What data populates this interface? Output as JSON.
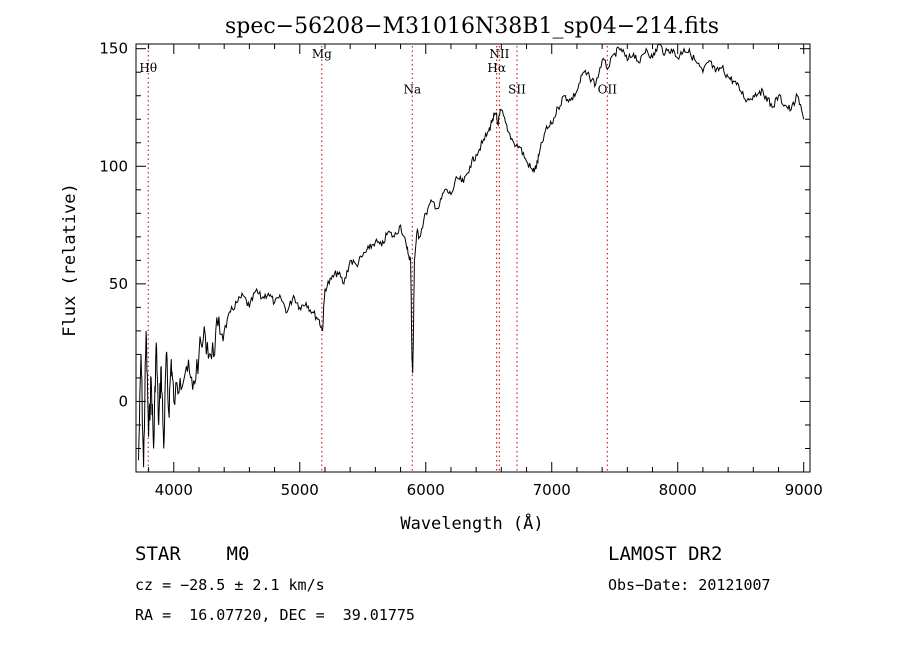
{
  "chart_data": {
    "type": "line",
    "title": "spec−56208−M31016N38B1_sp04−214.fits",
    "xlabel": "Wavelength (Å)",
    "ylabel": "Flux (relative)",
    "xlim": [
      3700,
      9050
    ],
    "ylim": [
      -30,
      152
    ],
    "xticks": [
      {
        "value": 4000,
        "label": "4000"
      },
      {
        "value": 5000,
        "label": "5000"
      },
      {
        "value": 6000,
        "label": "6000"
      },
      {
        "value": 7000,
        "label": "7000"
      },
      {
        "value": 8000,
        "label": "8000"
      },
      {
        "value": 9000,
        "label": "9000"
      }
    ],
    "yticks": [
      {
        "value": 0,
        "label": "0"
      },
      {
        "value": 50,
        "label": "50"
      },
      {
        "value": 100,
        "label": "100"
      },
      {
        "value": 150,
        "label": "150"
      }
    ],
    "grid": false,
    "series": [
      {
        "x": [
          3720,
          3740,
          3760,
          3780,
          3800,
          3820,
          3840,
          3860,
          3880,
          3900,
          3920,
          3940,
          3960,
          3980,
          4000,
          4050,
          4100,
          4150,
          4200,
          4250,
          4300,
          4350,
          4400,
          4450,
          4500,
          4550,
          4600,
          4650,
          4700,
          4750,
          4800,
          4850,
          4900,
          4950,
          5000,
          5050,
          5100,
          5150,
          5180,
          5200,
          5250,
          5300,
          5350,
          5400,
          5450,
          5500,
          5550,
          5600,
          5650,
          5700,
          5750,
          5800,
          5850,
          5880,
          5890,
          5896,
          5900,
          5910,
          5930,
          5950,
          6000,
          6050,
          6100,
          6150,
          6200,
          6250,
          6300,
          6350,
          6400,
          6450,
          6500,
          6530,
          6560,
          6570,
          6600,
          6650,
          6700,
          6750,
          6800,
          6850,
          6880,
          6900,
          6950,
          7000,
          7050,
          7100,
          7150,
          7200,
          7250,
          7300,
          7350,
          7400,
          7450,
          7500,
          7550,
          7600,
          7650,
          7700,
          7750,
          7800,
          7850,
          7900,
          7950,
          8000,
          8050,
          8100,
          8150,
          8200,
          8250,
          8300,
          8350,
          8400,
          8450,
          8500,
          8550,
          8600,
          8650,
          8700,
          8750,
          8800,
          8850,
          8900,
          8950,
          9000
        ],
        "y": [
          -25,
          20,
          -28,
          30,
          -15,
          10,
          -20,
          25,
          -10,
          15,
          -20,
          20,
          -5,
          18,
          0,
          10,
          15,
          5,
          20,
          28,
          18,
          32,
          30,
          38,
          42,
          45,
          40,
          47,
          44,
          46,
          42,
          44,
          38,
          45,
          40,
          42,
          38,
          35,
          30,
          48,
          52,
          55,
          50,
          60,
          58,
          62,
          65,
          68,
          66,
          72,
          70,
          75,
          65,
          60,
          20,
          12,
          22,
          60,
          72,
          70,
          80,
          85,
          82,
          90,
          88,
          95,
          93,
          100,
          105,
          110,
          115,
          120,
          122,
          118,
          124,
          115,
          110,
          108,
          102,
          98,
          100,
          105,
          115,
          118,
          125,
          130,
          128,
          132,
          140,
          138,
          135,
          145,
          142,
          148,
          150,
          145,
          148,
          144,
          150,
          146,
          152,
          148,
          150,
          146,
          150,
          148,
          144,
          140,
          145,
          140,
          142,
          138,
          136,
          132,
          128,
          130,
          132,
          130,
          125,
          130,
          126,
          124,
          130,
          120
        ]
      }
    ],
    "lines": [
      {
        "label": "Hθ",
        "x": 3797,
        "label_y": 140
      },
      {
        "label": "Mg",
        "x": 5175,
        "label_y": 146
      },
      {
        "label": "Na",
        "x": 5893,
        "label_y": 131
      },
      {
        "label": "NII",
        "x": 6584,
        "label_y": 146
      },
      {
        "label": "Hα",
        "x": 6563,
        "label_y": 140
      },
      {
        "label": "SII",
        "x": 6724,
        "label_y": 131
      },
      {
        "label": "OII",
        "x": 7441,
        "label_y": 131
      }
    ]
  },
  "info": {
    "classification": "STAR    M0",
    "survey": "LAMOST DR2",
    "cz": "cz = −28.5 ± 2.1 km/s",
    "obs_date": "Obs−Date: 20121007",
    "coords": "RA =  16.07720, DEC =  39.01775"
  }
}
